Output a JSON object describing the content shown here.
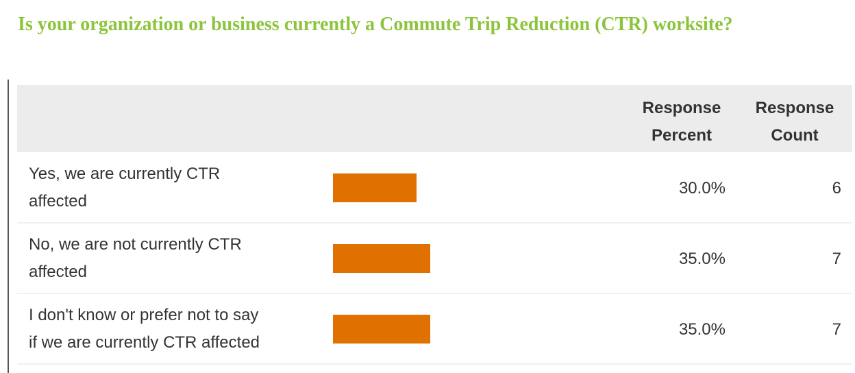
{
  "title": "Is your organization or business currently a Commute Trip Reduction (CTR) worksite?",
  "table": {
    "headers": [
      "Response Percent",
      "Response Count"
    ],
    "rows": [
      {
        "label": [
          "Yes, we are currently CTR",
          "affected"
        ],
        "percent": 30.0,
        "percent_label": "30.0%",
        "count": 6
      },
      {
        "label": [
          "No, we are not currently CTR",
          "affected"
        ],
        "percent": 35.0,
        "percent_label": "35.0%",
        "count": 7
      },
      {
        "label": [
          "I don't know or prefer not to say",
          "if we are currently CTR affected"
        ],
        "percent": 35.0,
        "percent_label": "35.0%",
        "count": 7
      }
    ]
  }
}
